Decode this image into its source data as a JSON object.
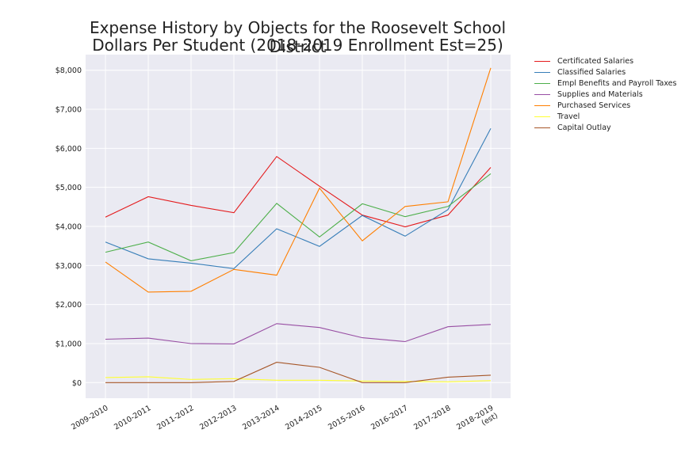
{
  "chart_data": {
    "type": "line",
    "title": "Expense History by Objects for the Roosevelt School District",
    "subtitle": "Dollars Per Student (2018-2019 Enrollment Est=25)",
    "xlabel": "",
    "ylabel": "",
    "categories": [
      "2009-2010",
      "2010-2011",
      "2011-2012",
      "2012-2013",
      "2013-2014",
      "2014-2015",
      "2015-2016",
      "2016-2017",
      "2017-2018",
      "2018-2019\n(est)"
    ],
    "ylim": [
      -400,
      8400
    ],
    "yticks": [
      0,
      1000,
      2000,
      3000,
      4000,
      5000,
      6000,
      7000,
      8000
    ],
    "ytick_labels": [
      "$0",
      "$1,000",
      "$2,000",
      "$3,000",
      "$4,000",
      "$5,000",
      "$6,000",
      "$7,000",
      "$8,000"
    ],
    "grid": true,
    "legend_position": "outside-right",
    "series": [
      {
        "name": "Certificated Salaries",
        "color": "#e41a1c",
        "values": [
          4240,
          4760,
          4540,
          4350,
          5790,
          5030,
          4290,
          3990,
          4290,
          5510
        ]
      },
      {
        "name": "Classified Salaries",
        "color": "#377eb8",
        "values": [
          3600,
          3170,
          3060,
          2920,
          3940,
          3490,
          4280,
          3750,
          4430,
          6510
        ]
      },
      {
        "name": "Empl Benefits and Payroll Taxes",
        "color": "#4daf4a",
        "values": [
          3340,
          3600,
          3120,
          3330,
          4590,
          3730,
          4580,
          4250,
          4510,
          5350
        ]
      },
      {
        "name": "Supplies and Materials",
        "color": "#984ea3",
        "values": [
          1110,
          1140,
          1000,
          990,
          1510,
          1410,
          1150,
          1050,
          1430,
          1490
        ]
      },
      {
        "name": "Purchased Services",
        "color": "#ff7f00",
        "values": [
          3090,
          2320,
          2340,
          2900,
          2750,
          4980,
          3630,
          4510,
          4630,
          8060
        ]
      },
      {
        "name": "Travel",
        "color": "#ffff33",
        "values": [
          130,
          150,
          80,
          100,
          60,
          60,
          40,
          30,
          20,
          50
        ]
      },
      {
        "name": "Capital Outlay",
        "color": "#a65628",
        "values": [
          0,
          0,
          0,
          30,
          520,
          390,
          0,
          0,
          140,
          190
        ]
      }
    ]
  }
}
